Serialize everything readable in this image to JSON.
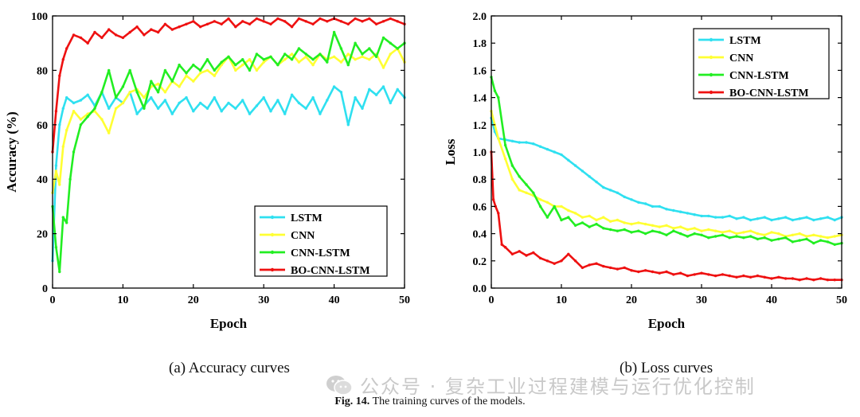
{
  "colors": {
    "LSTM": "#2fe0f0",
    "CNN": "#ffff33",
    "CNN-LSTM": "#22ee22",
    "BO-CNN-LSTM": "#ee1111"
  },
  "chart_data": [
    {
      "type": "line",
      "xlabel": "Epoch",
      "ylabel": "Accuracy (%)",
      "xlim": [
        0,
        50
      ],
      "ylim": [
        0,
        100
      ],
      "xticks": [
        0,
        10,
        20,
        30,
        40,
        50
      ],
      "yticks": [
        0,
        20,
        40,
        60,
        80,
        100
      ],
      "legend_position": "bottom-right",
      "caption": "(a) Accuracy curves",
      "series": [
        {
          "name": "LSTM",
          "x": [
            0,
            0.5,
            1,
            1.5,
            2,
            3,
            4,
            5,
            6,
            7,
            8,
            9,
            10,
            11,
            12,
            13,
            14,
            15,
            16,
            17,
            18,
            19,
            20,
            21,
            22,
            23,
            24,
            25,
            26,
            27,
            28,
            29,
            30,
            31,
            32,
            33,
            34,
            35,
            36,
            37,
            38,
            39,
            40,
            41,
            42,
            43,
            44,
            45,
            46,
            47,
            48,
            49,
            50
          ],
          "y": [
            10,
            45,
            60,
            66,
            70,
            68,
            69,
            71,
            67,
            72,
            66,
            70,
            68,
            72,
            64,
            67,
            70,
            66,
            69,
            64,
            68,
            70,
            65,
            68,
            66,
            70,
            65,
            68,
            66,
            69,
            64,
            67,
            70,
            65,
            69,
            64,
            71,
            68,
            66,
            70,
            64,
            69,
            74,
            72,
            60,
            70,
            66,
            73,
            71,
            74,
            68,
            73,
            70
          ]
        },
        {
          "name": "CNN",
          "x": [
            0,
            0.5,
            1,
            1.5,
            2,
            3,
            4,
            5,
            6,
            7,
            8,
            9,
            10,
            11,
            12,
            13,
            14,
            15,
            16,
            17,
            18,
            19,
            20,
            21,
            22,
            23,
            24,
            25,
            26,
            27,
            28,
            29,
            30,
            31,
            32,
            33,
            34,
            35,
            36,
            37,
            38,
            39,
            40,
            41,
            42,
            43,
            44,
            45,
            46,
            47,
            48,
            49,
            50
          ],
          "y": [
            35,
            43,
            38,
            52,
            58,
            65,
            62,
            64,
            65,
            62,
            57,
            66,
            68,
            72,
            73,
            70,
            74,
            75,
            72,
            76,
            74,
            78,
            76,
            79,
            80,
            78,
            82,
            85,
            80,
            82,
            84,
            80,
            83,
            85,
            82,
            84,
            86,
            83,
            85,
            82,
            86,
            84,
            85,
            83,
            86,
            84,
            85,
            84,
            86,
            81,
            86,
            88,
            83
          ]
        },
        {
          "name": "CNN-LSTM",
          "x": [
            0,
            0.5,
            1,
            1.5,
            2,
            2.5,
            3,
            4,
            5,
            6,
            7,
            8,
            9,
            10,
            11,
            12,
            13,
            14,
            15,
            16,
            17,
            18,
            19,
            20,
            21,
            22,
            23,
            24,
            25,
            26,
            27,
            28,
            29,
            30,
            31,
            32,
            33,
            34,
            35,
            36,
            37,
            38,
            39,
            40,
            41,
            42,
            43,
            44,
            45,
            46,
            47,
            48,
            49,
            50
          ],
          "y": [
            30,
            15,
            6,
            26,
            24,
            40,
            50,
            60,
            63,
            66,
            72,
            80,
            70,
            74,
            80,
            72,
            66,
            76,
            72,
            80,
            76,
            82,
            79,
            82,
            80,
            84,
            80,
            83,
            85,
            82,
            84,
            80,
            86,
            84,
            85,
            82,
            86,
            84,
            88,
            86,
            84,
            86,
            83,
            94,
            88,
            82,
            90,
            86,
            88,
            85,
            92,
            90,
            88,
            90
          ]
        },
        {
          "name": "BO-CNN-LSTM",
          "x": [
            0,
            0.5,
            1,
            1.5,
            2,
            3,
            4,
            5,
            6,
            7,
            8,
            9,
            10,
            11,
            12,
            13,
            14,
            15,
            16,
            17,
            18,
            19,
            20,
            21,
            22,
            23,
            24,
            25,
            26,
            27,
            28,
            29,
            30,
            31,
            32,
            33,
            34,
            35,
            36,
            37,
            38,
            39,
            40,
            41,
            42,
            43,
            44,
            45,
            46,
            47,
            48,
            49,
            50
          ],
          "y": [
            50,
            65,
            78,
            84,
            88,
            93,
            92,
            90,
            94,
            92,
            95,
            93,
            92,
            94,
            96,
            93,
            95,
            94,
            97,
            95,
            96,
            97,
            98,
            96,
            97,
            98,
            97,
            99,
            96,
            98,
            97,
            99,
            98,
            97,
            99,
            98,
            96,
            99,
            98,
            97,
            99,
            98,
            99,
            98,
            97,
            99,
            98,
            99,
            97,
            98,
            99,
            98,
            97
          ]
        }
      ]
    },
    {
      "type": "line",
      "xlabel": "Epoch",
      "ylabel": "Loss",
      "xlim": [
        0,
        50
      ],
      "ylim": [
        0,
        2.0
      ],
      "xticks": [
        0,
        10,
        20,
        30,
        40,
        50
      ],
      "yticks": [
        0.0,
        0.2,
        0.4,
        0.6,
        0.8,
        1.0,
        1.2,
        1.4,
        1.6,
        1.8,
        2.0
      ],
      "legend_position": "top-right",
      "caption": "(b) Loss curves",
      "series": [
        {
          "name": "LSTM",
          "x": [
            0,
            0.5,
            1,
            2,
            3,
            4,
            5,
            6,
            7,
            8,
            9,
            10,
            11,
            12,
            13,
            14,
            15,
            16,
            17,
            18,
            19,
            20,
            21,
            22,
            23,
            24,
            25,
            26,
            27,
            28,
            29,
            30,
            31,
            32,
            33,
            34,
            35,
            36,
            37,
            38,
            39,
            40,
            41,
            42,
            43,
            44,
            45,
            46,
            47,
            48,
            49,
            50
          ],
          "y": [
            1.25,
            1.15,
            1.1,
            1.09,
            1.08,
            1.07,
            1.07,
            1.06,
            1.04,
            1.02,
            1.0,
            0.98,
            0.94,
            0.9,
            0.86,
            0.82,
            0.78,
            0.74,
            0.72,
            0.7,
            0.67,
            0.65,
            0.63,
            0.62,
            0.6,
            0.6,
            0.58,
            0.57,
            0.56,
            0.55,
            0.54,
            0.53,
            0.53,
            0.52,
            0.52,
            0.53,
            0.51,
            0.52,
            0.5,
            0.51,
            0.52,
            0.5,
            0.51,
            0.52,
            0.5,
            0.51,
            0.52,
            0.5,
            0.51,
            0.52,
            0.5,
            0.52
          ]
        },
        {
          "name": "CNN",
          "x": [
            0,
            0.5,
            1,
            2,
            3,
            4,
            5,
            6,
            7,
            8,
            9,
            10,
            11,
            12,
            13,
            14,
            15,
            16,
            17,
            18,
            19,
            20,
            21,
            22,
            23,
            24,
            25,
            26,
            27,
            28,
            29,
            30,
            31,
            32,
            33,
            34,
            35,
            36,
            37,
            38,
            39,
            40,
            41,
            42,
            43,
            44,
            45,
            46,
            47,
            48,
            49,
            50
          ],
          "y": [
            1.3,
            1.2,
            1.1,
            0.95,
            0.8,
            0.72,
            0.7,
            0.68,
            0.65,
            0.63,
            0.6,
            0.6,
            0.57,
            0.55,
            0.52,
            0.53,
            0.5,
            0.52,
            0.49,
            0.5,
            0.48,
            0.47,
            0.48,
            0.47,
            0.46,
            0.45,
            0.46,
            0.44,
            0.45,
            0.43,
            0.44,
            0.42,
            0.43,
            0.42,
            0.41,
            0.42,
            0.4,
            0.41,
            0.42,
            0.4,
            0.39,
            0.41,
            0.4,
            0.38,
            0.39,
            0.4,
            0.38,
            0.39,
            0.38,
            0.37,
            0.38,
            0.39
          ]
        },
        {
          "name": "CNN-LSTM",
          "x": [
            0,
            0.5,
            1,
            2,
            3,
            4,
            5,
            6,
            7,
            8,
            9,
            10,
            11,
            12,
            13,
            14,
            15,
            16,
            17,
            18,
            19,
            20,
            21,
            22,
            23,
            24,
            25,
            26,
            27,
            28,
            29,
            30,
            31,
            32,
            33,
            34,
            35,
            36,
            37,
            38,
            39,
            40,
            41,
            42,
            43,
            44,
            45,
            46,
            47,
            48,
            49,
            50
          ],
          "y": [
            1.55,
            1.45,
            1.4,
            1.05,
            0.9,
            0.82,
            0.76,
            0.7,
            0.6,
            0.52,
            0.6,
            0.5,
            0.52,
            0.46,
            0.48,
            0.45,
            0.47,
            0.44,
            0.43,
            0.42,
            0.43,
            0.41,
            0.42,
            0.4,
            0.42,
            0.41,
            0.39,
            0.42,
            0.4,
            0.38,
            0.4,
            0.39,
            0.37,
            0.38,
            0.39,
            0.37,
            0.38,
            0.37,
            0.38,
            0.36,
            0.37,
            0.35,
            0.36,
            0.37,
            0.34,
            0.35,
            0.36,
            0.33,
            0.35,
            0.34,
            0.32,
            0.33
          ]
        },
        {
          "name": "BO-CNN-LSTM",
          "x": [
            0,
            0.3,
            0.6,
            1,
            1.5,
            2,
            3,
            4,
            5,
            6,
            7,
            8,
            9,
            10,
            11,
            12,
            13,
            14,
            15,
            16,
            17,
            18,
            19,
            20,
            21,
            22,
            23,
            24,
            25,
            26,
            27,
            28,
            29,
            30,
            31,
            32,
            33,
            34,
            35,
            36,
            37,
            38,
            39,
            40,
            41,
            42,
            43,
            44,
            45,
            46,
            47,
            48,
            49,
            50
          ],
          "y": [
            1.0,
            0.65,
            0.6,
            0.55,
            0.32,
            0.3,
            0.25,
            0.27,
            0.24,
            0.26,
            0.22,
            0.2,
            0.18,
            0.2,
            0.25,
            0.2,
            0.15,
            0.17,
            0.18,
            0.16,
            0.15,
            0.14,
            0.15,
            0.13,
            0.12,
            0.13,
            0.12,
            0.11,
            0.12,
            0.1,
            0.11,
            0.09,
            0.1,
            0.11,
            0.1,
            0.09,
            0.1,
            0.09,
            0.08,
            0.09,
            0.08,
            0.09,
            0.08,
            0.07,
            0.08,
            0.07,
            0.07,
            0.06,
            0.07,
            0.06,
            0.07,
            0.06,
            0.06,
            0.06
          ]
        }
      ]
    }
  ],
  "figure_caption": {
    "label": "Fig. 14.",
    "text": "The training curves of the models."
  },
  "watermark": {
    "text": "公众号 · 复杂工业过程建模与运行优化控制",
    "icon": "wechat-icon"
  }
}
